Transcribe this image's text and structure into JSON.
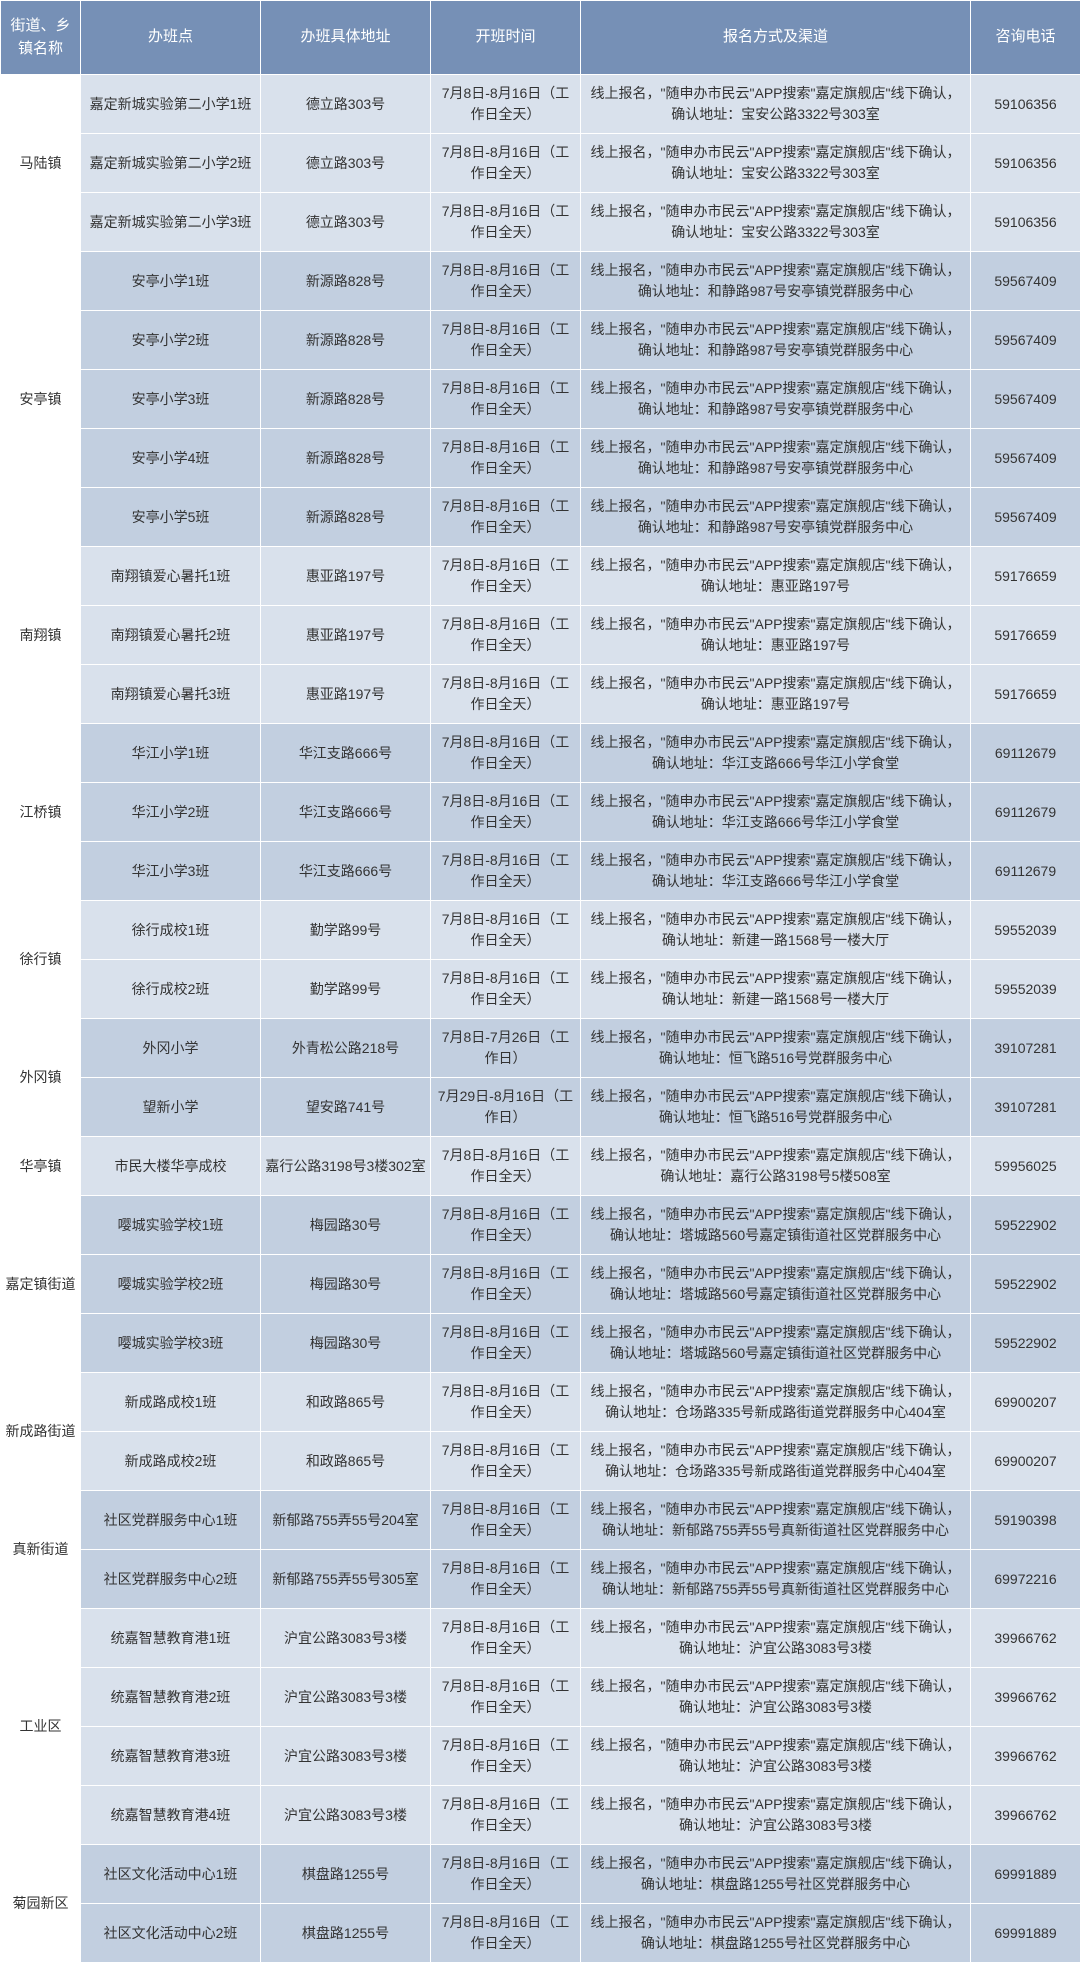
{
  "columns": {
    "town": "街道、乡镇名称",
    "site": "办班点",
    "addr": "办班具体地址",
    "time": "开班时间",
    "reg": "报名方式及渠道",
    "phone": "咨询电话"
  },
  "colors": {
    "header_bg": "#7690b6",
    "header_fg": "#ffffff",
    "row_light": "#d9e1ec",
    "row_dark": "#c2cfe0",
    "border": "#ffffff",
    "town_bg": "#ffffff"
  },
  "groups": [
    {
      "town": "马陆镇",
      "rows": [
        {
          "site": "嘉定新城实验第二小学1班",
          "addr": "德立路303号",
          "time": "7月8日-8月16日（工作日全天）",
          "reg": "线上报名，\"随申办市民云\"APP搜索\"嘉定旗舰店\"线下确认，确认地址：宝安公路3322号303室",
          "phone": "59106356"
        },
        {
          "site": "嘉定新城实验第二小学2班",
          "addr": "德立路303号",
          "time": "7月8日-8月16日（工作日全天）",
          "reg": "线上报名，\"随申办市民云\"APP搜索\"嘉定旗舰店\"线下确认，确认地址：宝安公路3322号303室",
          "phone": "59106356"
        },
        {
          "site": "嘉定新城实验第二小学3班",
          "addr": "德立路303号",
          "time": "7月8日-8月16日（工作日全天）",
          "reg": "线上报名，\"随申办市民云\"APP搜索\"嘉定旗舰店\"线下确认，确认地址：宝安公路3322号303室",
          "phone": "59106356"
        }
      ]
    },
    {
      "town": "安亭镇",
      "rows": [
        {
          "site": "安亭小学1班",
          "addr": "新源路828号",
          "time": "7月8日-8月16日（工作日全天）",
          "reg": "线上报名，\"随申办市民云\"APP搜索\"嘉定旗舰店\"线下确认，确认地址：和静路987号安亭镇党群服务中心",
          "phone": "59567409"
        },
        {
          "site": "安亭小学2班",
          "addr": "新源路828号",
          "time": "7月8日-8月16日（工作日全天）",
          "reg": "线上报名，\"随申办市民云\"APP搜索\"嘉定旗舰店\"线下确认，确认地址：和静路987号安亭镇党群服务中心",
          "phone": "59567409"
        },
        {
          "site": "安亭小学3班",
          "addr": "新源路828号",
          "time": "7月8日-8月16日（工作日全天）",
          "reg": "线上报名，\"随申办市民云\"APP搜索\"嘉定旗舰店\"线下确认，确认地址：和静路987号安亭镇党群服务中心",
          "phone": "59567409"
        },
        {
          "site": "安亭小学4班",
          "addr": "新源路828号",
          "time": "7月8日-8月16日（工作日全天）",
          "reg": "线上报名，\"随申办市民云\"APP搜索\"嘉定旗舰店\"线下确认，确认地址：和静路987号安亭镇党群服务中心",
          "phone": "59567409"
        },
        {
          "site": "安亭小学5班",
          "addr": "新源路828号",
          "time": "7月8日-8月16日（工作日全天）",
          "reg": "线上报名，\"随申办市民云\"APP搜索\"嘉定旗舰店\"线下确认，确认地址：和静路987号安亭镇党群服务中心",
          "phone": "59567409"
        }
      ]
    },
    {
      "town": "南翔镇",
      "rows": [
        {
          "site": "南翔镇爱心暑托1班",
          "addr": "惠亚路197号",
          "time": "7月8日-8月16日（工作日全天）",
          "reg": "线上报名，\"随申办市民云\"APP搜索\"嘉定旗舰店\"线下确认，确认地址：惠亚路197号",
          "phone": "59176659"
        },
        {
          "site": "南翔镇爱心暑托2班",
          "addr": "惠亚路197号",
          "time": "7月8日-8月16日（工作日全天）",
          "reg": "线上报名，\"随申办市民云\"APP搜索\"嘉定旗舰店\"线下确认，确认地址：惠亚路197号",
          "phone": "59176659"
        },
        {
          "site": "南翔镇爱心暑托3班",
          "addr": "惠亚路197号",
          "time": "7月8日-8月16日（工作日全天）",
          "reg": "线上报名，\"随申办市民云\"APP搜索\"嘉定旗舰店\"线下确认，确认地址：惠亚路197号",
          "phone": "59176659"
        }
      ]
    },
    {
      "town": "江桥镇",
      "rows": [
        {
          "site": "华江小学1班",
          "addr": "华江支路666号",
          "time": "7月8日-8月16日（工作日全天）",
          "reg": "线上报名，\"随申办市民云\"APP搜索\"嘉定旗舰店\"线下确认，确认地址：华江支路666号华江小学食堂",
          "phone": "69112679"
        },
        {
          "site": "华江小学2班",
          "addr": "华江支路666号",
          "time": "7月8日-8月16日（工作日全天）",
          "reg": "线上报名，\"随申办市民云\"APP搜索\"嘉定旗舰店\"线下确认，确认地址：华江支路666号华江小学食堂",
          "phone": "69112679"
        },
        {
          "site": "华江小学3班",
          "addr": "华江支路666号",
          "time": "7月8日-8月16日（工作日全天）",
          "reg": "线上报名，\"随申办市民云\"APP搜索\"嘉定旗舰店\"线下确认，确认地址：华江支路666号华江小学食堂",
          "phone": "69112679"
        }
      ]
    },
    {
      "town": "徐行镇",
      "rows": [
        {
          "site": "徐行成校1班",
          "addr": "勤学路99号",
          "time": "7月8日-8月16日（工作日全天）",
          "reg": "线上报名，\"随申办市民云\"APP搜索\"嘉定旗舰店\"线下确认，确认地址：新建一路1568号一楼大厅",
          "phone": "59552039"
        },
        {
          "site": "徐行成校2班",
          "addr": "勤学路99号",
          "time": "7月8日-8月16日（工作日全天）",
          "reg": "线上报名，\"随申办市民云\"APP搜索\"嘉定旗舰店\"线下确认，确认地址：新建一路1568号一楼大厅",
          "phone": "59552039"
        }
      ]
    },
    {
      "town": "外冈镇",
      "rows": [
        {
          "site": "外冈小学",
          "addr": "外青松公路218号",
          "time": "7月8日-7月26日（工作日）",
          "reg": "线上报名，\"随申办市民云\"APP搜索\"嘉定旗舰店\"线下确认，确认地址：恒飞路516号党群服务中心",
          "phone": "39107281"
        },
        {
          "site": "望新小学",
          "addr": "望安路741号",
          "time": "7月29日-8月16日（工作日）",
          "reg": "线上报名，\"随申办市民云\"APP搜索\"嘉定旗舰店\"线下确认，确认地址：恒飞路516号党群服务中心",
          "phone": "39107281"
        }
      ]
    },
    {
      "town": "华亭镇",
      "rows": [
        {
          "site": "市民大楼华亭成校",
          "addr": "嘉行公路3198号3楼302室",
          "time": "7月8日-8月16日（工作日全天）",
          "reg": "线上报名，\"随申办市民云\"APP搜索\"嘉定旗舰店\"线下确认，确认地址：嘉行公路3198号5楼508室",
          "phone": "59956025"
        }
      ]
    },
    {
      "town": "嘉定镇街道",
      "rows": [
        {
          "site": "嘤城实验学校1班",
          "addr": "梅园路30号",
          "time": "7月8日-8月16日（工作日全天）",
          "reg": "线上报名，\"随申办市民云\"APP搜索\"嘉定旗舰店\"线下确认，确认地址：塔城路560号嘉定镇街道社区党群服务中心",
          "phone": "59522902"
        },
        {
          "site": "嘤城实验学校2班",
          "addr": "梅园路30号",
          "time": "7月8日-8月16日（工作日全天）",
          "reg": "线上报名，\"随申办市民云\"APP搜索\"嘉定旗舰店\"线下确认，确认地址：塔城路560号嘉定镇街道社区党群服务中心",
          "phone": "59522902"
        },
        {
          "site": "嘤城实验学校3班",
          "addr": "梅园路30号",
          "time": "7月8日-8月16日（工作日全天）",
          "reg": "线上报名，\"随申办市民云\"APP搜索\"嘉定旗舰店\"线下确认，确认地址：塔城路560号嘉定镇街道社区党群服务中心",
          "phone": "59522902"
        }
      ]
    },
    {
      "town": "新成路街道",
      "rows": [
        {
          "site": "新成路成校1班",
          "addr": "和政路865号",
          "time": "7月8日-8月16日（工作日全天）",
          "reg": "线上报名，\"随申办市民云\"APP搜索\"嘉定旗舰店\"线下确认，确认地址：仓场路335号新成路街道党群服务中心404室",
          "phone": "69900207"
        },
        {
          "site": "新成路成校2班",
          "addr": "和政路865号",
          "time": "7月8日-8月16日（工作日全天）",
          "reg": "线上报名，\"随申办市民云\"APP搜索\"嘉定旗舰店\"线下确认，确认地址：仓场路335号新成路街道党群服务中心404室",
          "phone": "69900207"
        }
      ]
    },
    {
      "town": "真新街道",
      "rows": [
        {
          "site": "社区党群服务中心1班",
          "addr": "新郁路755弄55号204室",
          "time": "7月8日-8月16日（工作日全天）",
          "reg": "线上报名，\"随申办市民云\"APP搜索\"嘉定旗舰店\"线下确认，确认地址：新郁路755弄55号真新街道社区党群服务中心",
          "phone": "59190398"
        },
        {
          "site": "社区党群服务中心2班",
          "addr": "新郁路755弄55号305室",
          "time": "7月8日-8月16日（工作日全天）",
          "reg": "线上报名，\"随申办市民云\"APP搜索\"嘉定旗舰店\"线下确认，确认地址：新郁路755弄55号真新街道社区党群服务中心",
          "phone": "69972216"
        }
      ]
    },
    {
      "town": "工业区",
      "rows": [
        {
          "site": "统嘉智慧教育港1班",
          "addr": "沪宜公路3083号3楼",
          "time": "7月8日-8月16日（工作日全天）",
          "reg": "线上报名，\"随申办市民云\"APP搜索\"嘉定旗舰店\"线下确认，确认地址：沪宜公路3083号3楼",
          "phone": "39966762"
        },
        {
          "site": "统嘉智慧教育港2班",
          "addr": "沪宜公路3083号3楼",
          "time": "7月8日-8月16日（工作日全天）",
          "reg": "线上报名，\"随申办市民云\"APP搜索\"嘉定旗舰店\"线下确认，确认地址：沪宜公路3083号3楼",
          "phone": "39966762"
        },
        {
          "site": "统嘉智慧教育港3班",
          "addr": "沪宜公路3083号3楼",
          "time": "7月8日-8月16日（工作日全天）",
          "reg": "线上报名，\"随申办市民云\"APP搜索\"嘉定旗舰店\"线下确认，确认地址：沪宜公路3083号3楼",
          "phone": "39966762"
        },
        {
          "site": "统嘉智慧教育港4班",
          "addr": "沪宜公路3083号3楼",
          "time": "7月8日-8月16日（工作日全天）",
          "reg": "线上报名，\"随申办市民云\"APP搜索\"嘉定旗舰店\"线下确认，确认地址：沪宜公路3083号3楼",
          "phone": "39966762"
        }
      ]
    },
    {
      "town": "菊园新区",
      "rows": [
        {
          "site": "社区文化活动中心1班",
          "addr": "棋盘路1255号",
          "time": "7月8日-8月16日（工作日全天）",
          "reg": "线上报名，\"随申办市民云\"APP搜索\"嘉定旗舰店\"线下确认，确认地址：棋盘路1255号社区党群服务中心",
          "phone": "69991889"
        },
        {
          "site": "社区文化活动中心2班",
          "addr": "棋盘路1255号",
          "time": "7月8日-8月16日（工作日全天）",
          "reg": "线上报名，\"随申办市民云\"APP搜索\"嘉定旗舰店\"线下确认，确认地址：棋盘路1255号社区党群服务中心",
          "phone": "69991889"
        }
      ]
    }
  ]
}
